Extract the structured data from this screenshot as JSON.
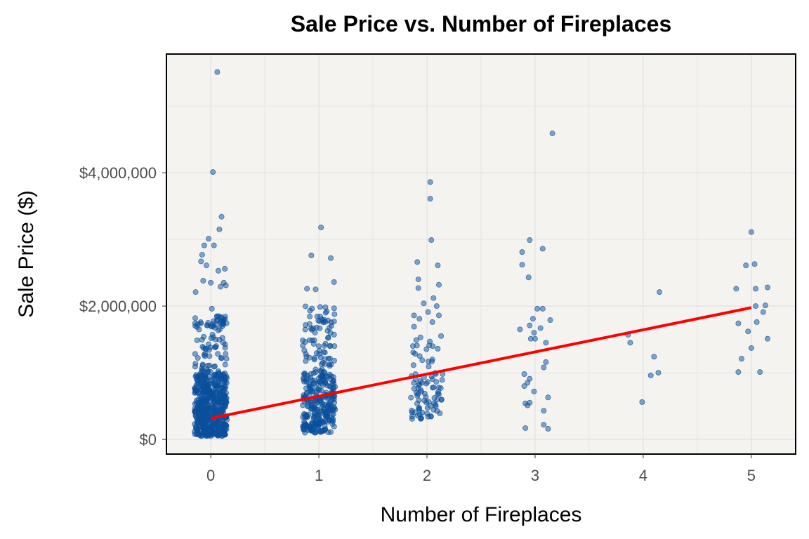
{
  "chart_data": {
    "type": "scatter",
    "title": "Sale Price vs. Number of Fireplaces",
    "xlabel": "Number of Fireplaces",
    "ylabel": "Sale Price ($)",
    "xlim": [
      -0.41,
      5.41
    ],
    "ylim": [
      -220000,
      5780000
    ],
    "x_ticks": [
      0,
      1,
      2,
      3,
      4,
      5
    ],
    "x_tick_labels": [
      "0",
      "1",
      "2",
      "3",
      "4",
      "5"
    ],
    "y_ticks": [
      0,
      2000000,
      4000000
    ],
    "y_tick_labels": [
      "$0",
      "$2,000,000",
      "$4,000,000"
    ],
    "grid": true,
    "point_color": "#0a4f9c",
    "point_alpha": 0.5,
    "line_color": "#ff0000",
    "background": "#f4f3f0",
    "y_unit": "million USD in points",
    "regression_line": {
      "x": [
        0,
        5
      ],
      "y": [
        0.316,
        1.976
      ]
    },
    "points": [
      [
        0.06,
        5.51
      ],
      [
        0.02,
        4.01
      ],
      [
        0.1,
        3.34
      ],
      [
        0.08,
        3.15
      ],
      [
        -0.02,
        3.01
      ],
      [
        -0.06,
        2.91
      ],
      [
        0.03,
        2.91
      ],
      [
        -0.08,
        2.77
      ],
      [
        -0.09,
        2.67
      ],
      [
        -0.04,
        2.61
      ],
      [
        0.13,
        2.56
      ],
      [
        0.07,
        2.53
      ],
      [
        -0.07,
        2.38
      ],
      [
        0.0,
        2.35
      ],
      [
        0.12,
        2.35
      ],
      [
        0.09,
        2.29
      ],
      [
        0.14,
        2.31
      ],
      [
        -0.14,
        2.21
      ],
      [
        0.01,
        1.96
      ],
      [
        1.02,
        3.18
      ],
      [
        0.93,
        2.76
      ],
      [
        1.11,
        2.72
      ],
      [
        1.14,
        2.36
      ],
      [
        0.89,
        2.26
      ],
      [
        0.97,
        2.25
      ],
      [
        2.03,
        3.86
      ],
      [
        2.03,
        3.61
      ],
      [
        2.04,
        2.99
      ],
      [
        1.91,
        2.66
      ],
      [
        2.1,
        2.61
      ],
      [
        1.92,
        2.4
      ],
      [
        1.92,
        2.27
      ],
      [
        2.11,
        2.32
      ],
      [
        2.06,
        2.12
      ],
      [
        1.97,
        2.04
      ],
      [
        2.09,
        2.0
      ],
      [
        1.88,
        1.86
      ],
      [
        2.01,
        1.91
      ],
      [
        2.11,
        1.86
      ],
      [
        1.93,
        1.81
      ],
      [
        2.05,
        1.76
      ],
      [
        1.88,
        1.69
      ],
      [
        2.13,
        1.55
      ],
      [
        1.94,
        1.53
      ],
      [
        1.87,
        1.4
      ],
      [
        2.02,
        1.41
      ],
      [
        2.1,
        1.36
      ],
      [
        2.95,
        2.99
      ],
      [
        2.88,
        2.81
      ],
      [
        3.07,
        2.86
      ],
      [
        2.88,
        2.62
      ],
      [
        2.94,
        2.43
      ],
      [
        3.02,
        1.96
      ],
      [
        3.07,
        1.96
      ],
      [
        2.98,
        1.81
      ],
      [
        3.14,
        1.79
      ],
      [
        2.95,
        1.71
      ],
      [
        2.86,
        1.65
      ],
      [
        3.05,
        1.67
      ],
      [
        2.99,
        1.6
      ],
      [
        2.96,
        1.51
      ],
      [
        3.0,
        1.51
      ],
      [
        3.1,
        1.45
      ],
      [
        3.1,
        1.16
      ],
      [
        3.08,
        1.08
      ],
      [
        2.9,
        0.98
      ],
      [
        2.95,
        0.91
      ],
      [
        2.93,
        0.85
      ],
      [
        2.9,
        0.8
      ],
      [
        2.99,
        0.72
      ],
      [
        3.12,
        0.63
      ],
      [
        2.91,
        0.54
      ],
      [
        2.95,
        0.55
      ],
      [
        2.93,
        0.51
      ],
      [
        3.08,
        0.43
      ],
      [
        3.08,
        0.22
      ],
      [
        2.91,
        0.17
      ],
      [
        3.12,
        0.16
      ],
      [
        3.16,
        4.59
      ],
      [
        4.15,
        2.21
      ],
      [
        3.86,
        1.57
      ],
      [
        3.88,
        1.45
      ],
      [
        4.1,
        1.24
      ],
      [
        4.14,
        1.0
      ],
      [
        4.07,
        0.96
      ],
      [
        3.99,
        0.56
      ],
      [
        5.0,
        3.11
      ],
      [
        4.95,
        2.61
      ],
      [
        5.03,
        2.63
      ],
      [
        4.86,
        2.26
      ],
      [
        5.04,
        2.26
      ],
      [
        5.15,
        2.28
      ],
      [
        5.04,
        2.0
      ],
      [
        5.13,
        2.01
      ],
      [
        5.11,
        1.91
      ],
      [
        4.88,
        1.74
      ],
      [
        5.05,
        1.76
      ],
      [
        4.97,
        1.62
      ],
      [
        5.15,
        1.51
      ],
      [
        5.0,
        1.37
      ],
      [
        4.91,
        1.21
      ],
      [
        4.88,
        1.01
      ],
      [
        5.08,
        1.01
      ]
    ],
    "dense_clusters": [
      {
        "x": 0,
        "jitter": 0.15,
        "y_range": [
          0.05,
          1.0
        ],
        "count": 500
      },
      {
        "x": 0,
        "jitter": 0.15,
        "y_range": [
          1.0,
          1.85
        ],
        "count": 90
      },
      {
        "x": 1,
        "jitter": 0.15,
        "y_range": [
          0.1,
          1.0
        ],
        "count": 260
      },
      {
        "x": 1,
        "jitter": 0.15,
        "y_range": [
          1.0,
          2.0
        ],
        "count": 80
      },
      {
        "x": 2,
        "jitter": 0.15,
        "y_range": [
          0.3,
          1.0
        ],
        "count": 70
      },
      {
        "x": 2,
        "jitter": 0.15,
        "y_range": [
          1.0,
          1.5
        ],
        "count": 14
      }
    ]
  }
}
